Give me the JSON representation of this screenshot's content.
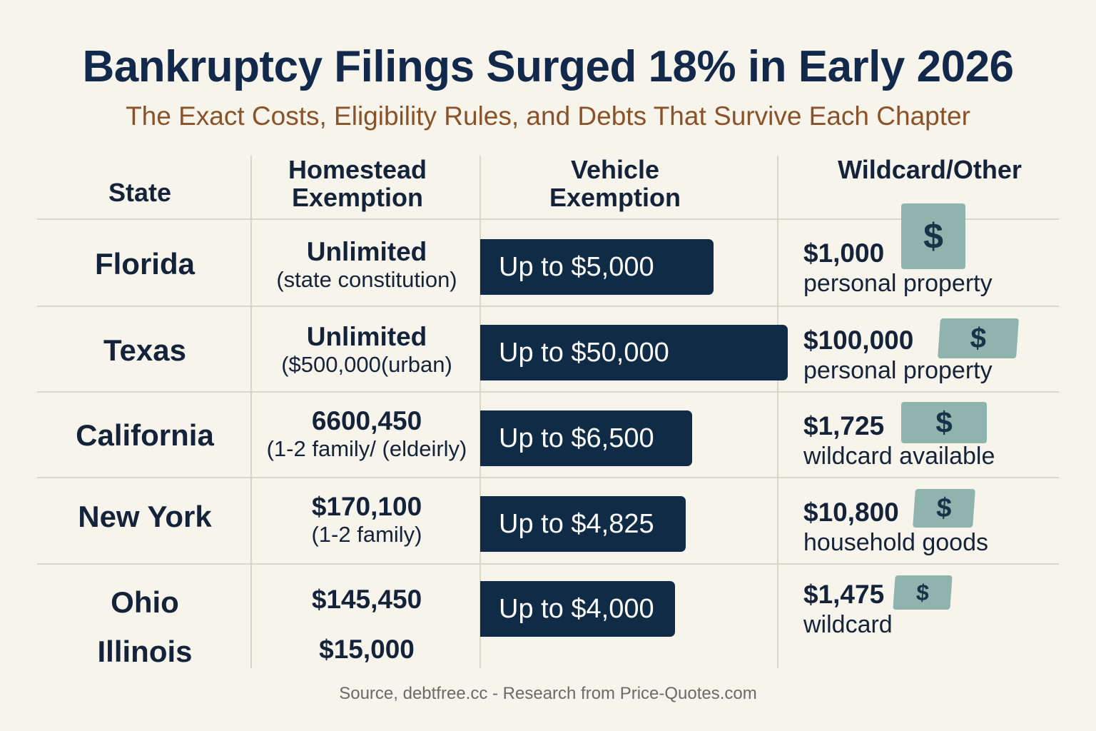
{
  "chart_data": {
    "type": "table",
    "title": "Bankruptcy Filings Surged 18% in Early 2026",
    "subtitle": "The Exact Costs, Eligibility Rules, and Debts That Survive Each Chapter",
    "columns": [
      "State",
      "Homestead Exemption",
      "Vehicle Exemption",
      "Wildcard/Other"
    ],
    "header_lines": {
      "state": [
        "State"
      ],
      "homestead": [
        "Homestead",
        "Exemption"
      ],
      "vehicle": [
        "Vehicle",
        "Exemption"
      ],
      "wildcard": [
        "Wildcard/Other"
      ]
    },
    "rows": [
      {
        "state": "Florida",
        "homestead": "Unlimited",
        "homestead_note": "(state constitution)",
        "vehicle": "Up to $5,000",
        "vehicle_value": 5000,
        "wildcard": "$1,000",
        "wildcard_desc": "personal property"
      },
      {
        "state": "Texas",
        "homestead": "Unlimited",
        "homestead_note": "($500,000(urban)",
        "vehicle": "Up to $50,000",
        "vehicle_value": 50000,
        "wildcard": "$100,000",
        "wildcard_desc": "personal property"
      },
      {
        "state": "California",
        "homestead": "6600,450",
        "homestead_note": "(1-2 family/ (eldeirly)",
        "vehicle": "Up to $6,500",
        "vehicle_value": 6500,
        "wildcard": "$1,725",
        "wildcard_desc": "wildcard available"
      },
      {
        "state": "New York",
        "homestead": "$170,100",
        "homestead_note": "(1-2 family)",
        "vehicle": "Up to $4,825",
        "vehicle_value": 4825,
        "wildcard": "$10,800",
        "wildcard_desc": "household goods"
      },
      {
        "state": "Ohio",
        "homestead": "$145,450",
        "homestead_note": "",
        "vehicle": "Up to $4,000",
        "vehicle_value": 4000,
        "wildcard": "$1,475",
        "wildcard_desc": "wildcard"
      },
      {
        "state": "Illinois",
        "homestead": "$15,000",
        "homestead_note": "",
        "vehicle": "",
        "vehicle_value": null,
        "wildcard": "",
        "wildcard_desc": ""
      }
    ],
    "icon": "dollar-bill-icon",
    "icon_glyph": "$",
    "source": "Source, debtfree.cc - Research from Price-Quotes.com",
    "colors": {
      "title": "#13294b",
      "subtitle": "#8a5228",
      "vehicle_bar": "#0f2b46",
      "dollar_icon": "#8fb3ad",
      "background": "#f7f4ec"
    }
  }
}
